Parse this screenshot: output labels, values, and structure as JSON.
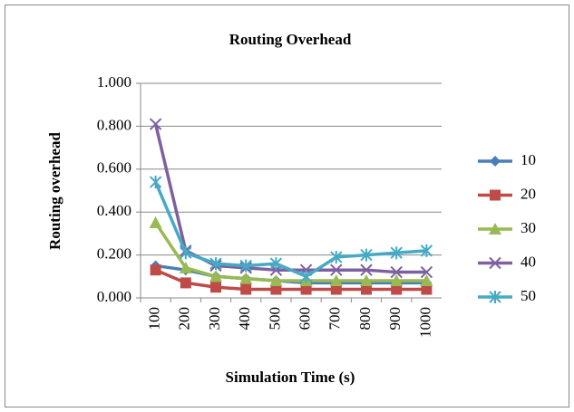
{
  "chart_data": {
    "type": "line",
    "title": "Routing Overhead",
    "x_label": "Simulation Time (s)",
    "y_label": "Routing overhead",
    "categories": [
      "100",
      "200",
      "300",
      "400",
      "500",
      "600",
      "700",
      "800",
      "900",
      "1000"
    ],
    "series": [
      {
        "name": "10",
        "color": "#4a7ebb",
        "marker": "diamond",
        "values": [
          0.15,
          0.13,
          0.1,
          0.09,
          0.08,
          0.07,
          0.07,
          0.07,
          0.07,
          0.07
        ]
      },
      {
        "name": "20",
        "color": "#be4b48",
        "marker": "square",
        "values": [
          0.13,
          0.07,
          0.05,
          0.04,
          0.04,
          0.04,
          0.04,
          0.04,
          0.04,
          0.04
        ]
      },
      {
        "name": "30",
        "color": "#98b954",
        "marker": "triangle",
        "values": [
          0.35,
          0.14,
          0.1,
          0.09,
          0.08,
          0.08,
          0.08,
          0.08,
          0.08,
          0.08
        ]
      },
      {
        "name": "40",
        "color": "#7d60a0",
        "marker": "x",
        "values": [
          0.81,
          0.22,
          0.15,
          0.14,
          0.13,
          0.13,
          0.13,
          0.13,
          0.12,
          0.12
        ]
      },
      {
        "name": "50",
        "color": "#46aac5",
        "marker": "star",
        "values": [
          0.54,
          0.21,
          0.16,
          0.15,
          0.16,
          0.1,
          0.19,
          0.2,
          0.21,
          0.22
        ]
      }
    ],
    "ylim": [
      0,
      1
    ],
    "yticks": [
      {
        "value": 0,
        "label": "0.000"
      },
      {
        "value": 0.2,
        "label": "0.200"
      },
      {
        "value": 0.4,
        "label": "0.400"
      },
      {
        "value": 0.6,
        "label": "0.600"
      },
      {
        "value": 0.8,
        "label": "0.800"
      },
      {
        "value": 1,
        "label": "1.000"
      }
    ],
    "grid": true,
    "legend": "right"
  }
}
